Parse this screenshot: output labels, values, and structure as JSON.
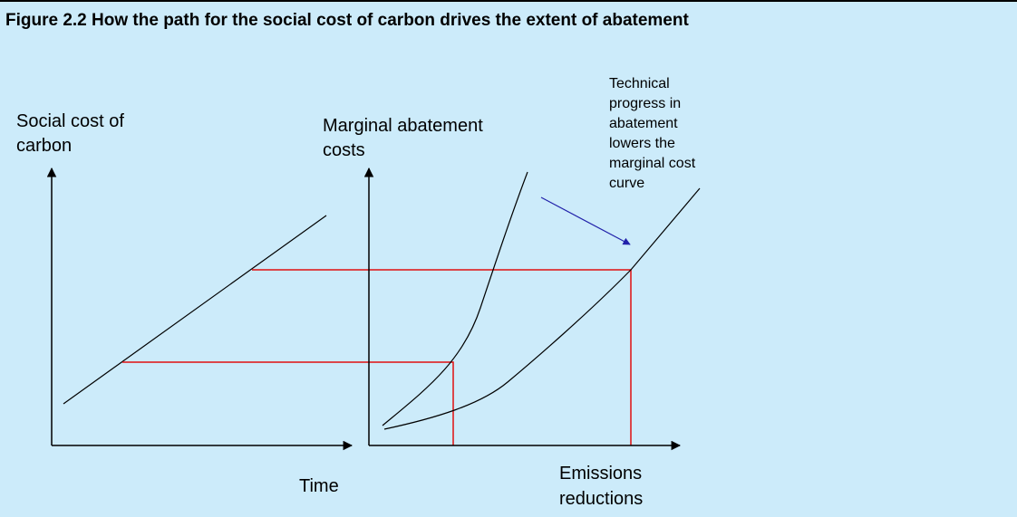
{
  "title": "Figure 2.2   How the path for the social cost of carbon drives the extent of abatement",
  "left_panel": {
    "y_label": [
      "Social cost of",
      "carbon"
    ],
    "x_label": "Time"
  },
  "right_panel": {
    "y_label": [
      "Marginal abatement",
      "costs"
    ],
    "x_label": [
      "Emissions",
      "reductions"
    ]
  },
  "annotation": [
    "Technical",
    "progress in",
    "abatement",
    "lowers the",
    "marginal cost",
    "curve"
  ]
}
